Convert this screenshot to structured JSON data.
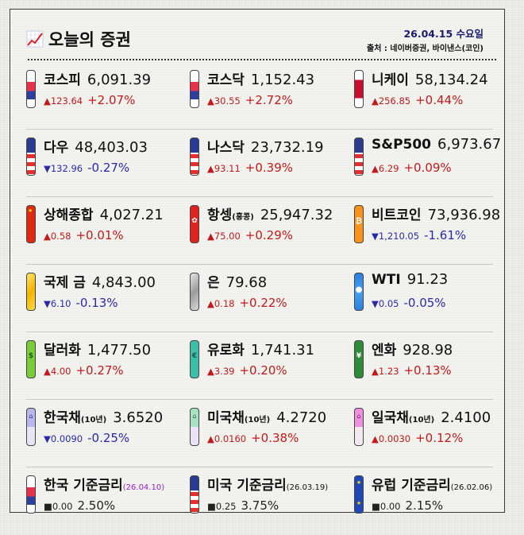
{
  "header": {
    "title": "오늘의 증권",
    "date": "26.04.15 수요일",
    "source": "출처 : 네이버증권, 바이낸스(코인)"
  },
  "colors": {
    "up": "#c21a1a",
    "down": "#2a2aa8",
    "flat": "#222222",
    "date_text": "#1b1b6b",
    "rate_date_highlight": "#9a22c9"
  },
  "rows": [
    [
      {
        "name": "코스피",
        "sub": "",
        "value": "6,091.39",
        "arrow": "▲",
        "change": "123.64",
        "pct": "+2.07%",
        "dir": "up",
        "icon": "korea-flag-icon"
      },
      {
        "name": "코스닥",
        "sub": "",
        "value": "1,152.43",
        "arrow": "▲",
        "change": "30.55",
        "pct": "+2.72%",
        "dir": "up",
        "icon": "korea-flag-icon"
      },
      {
        "name": "니케이",
        "sub": "",
        "value": "58,134.24",
        "arrow": "▲",
        "change": "256.85",
        "pct": "+0.44%",
        "dir": "up",
        "icon": "japan-flag-icon"
      }
    ],
    [
      {
        "name": "다우",
        "sub": "",
        "value": "48,403.03",
        "arrow": "▼",
        "change": "132.96",
        "pct": "-0.27%",
        "dir": "down",
        "icon": "usa-flag-icon"
      },
      {
        "name": "나스닥",
        "sub": "",
        "value": "23,732.19",
        "arrow": "▲",
        "change": "93.11",
        "pct": "+0.39%",
        "dir": "up",
        "icon": "usa-flag-icon"
      },
      {
        "name": "S&P500",
        "sub": "",
        "value": "6,973.67",
        "arrow": "▲",
        "change": "6.29",
        "pct": "+0.09%",
        "dir": "up",
        "icon": "usa-flag-icon"
      }
    ],
    [
      {
        "name": "상해종합",
        "sub": "",
        "value": "4,027.21",
        "arrow": "▲",
        "change": "0.58",
        "pct": "+0.01%",
        "dir": "up",
        "icon": "china-flag-icon"
      },
      {
        "name": "항셍",
        "sub": "(홍콩)",
        "value": "25,947.32",
        "arrow": "▲",
        "change": "75.00",
        "pct": "+0.29%",
        "dir": "up",
        "icon": "hongkong-flag-icon"
      },
      {
        "name": "비트코인",
        "sub": "",
        "value": "73,936.98",
        "arrow": "▼",
        "change": "1,210.05",
        "pct": "-1.61%",
        "dir": "down",
        "icon": "bitcoin-icon"
      }
    ],
    [
      {
        "name": "국제 금",
        "sub": "",
        "value": "4,843.00",
        "arrow": "▼",
        "change": "6.10",
        "pct": "-0.13%",
        "dir": "down",
        "icon": "gold-bar-icon"
      },
      {
        "name": "은",
        "sub": "",
        "value": "79.68",
        "arrow": "▲",
        "change": "0.18",
        "pct": "+0.22%",
        "dir": "up",
        "icon": "silver-bar-icon"
      },
      {
        "name": "WTI",
        "sub": "",
        "value": "91.23",
        "arrow": "▼",
        "change": "0.05",
        "pct": "-0.05%",
        "dir": "down",
        "icon": "oil-drop-icon"
      }
    ],
    [
      {
        "name": "달러화",
        "sub": "",
        "value": "1,477.50",
        "arrow": "▲",
        "change": "4.00",
        "pct": "+0.27%",
        "dir": "up",
        "icon": "dollar-bill-icon"
      },
      {
        "name": "유로화",
        "sub": "",
        "value": "1,741.31",
        "arrow": "▲",
        "change": "3.39",
        "pct": "+0.20%",
        "dir": "up",
        "icon": "euro-bill-icon"
      },
      {
        "name": "엔화",
        "sub": "",
        "value": "928.98",
        "arrow": "▲",
        "change": "1.23",
        "pct": "+0.13%",
        "dir": "up",
        "icon": "yen-bill-icon"
      }
    ],
    [
      {
        "name": "한국채",
        "sub": "(10년)",
        "value": "3.6520",
        "arrow": "▼",
        "change": "0.0090",
        "pct": "-0.25%",
        "dir": "down",
        "icon": "korea-bond-icon"
      },
      {
        "name": "미국채",
        "sub": "(10년)",
        "value": "4.2720",
        "arrow": "▲",
        "change": "0.0160",
        "pct": "+0.38%",
        "dir": "up",
        "icon": "us-bond-icon"
      },
      {
        "name": "일국채",
        "sub": "(10년)",
        "value": "2.4100",
        "arrow": "▲",
        "change": "0.0030",
        "pct": "+0.12%",
        "dir": "up",
        "icon": "japan-bond-icon"
      }
    ],
    [
      {
        "name": "한국 기준금리",
        "sub": "(26.04.10)",
        "value": "",
        "arrow": "■",
        "change": "0.00",
        "pct": "2.50%",
        "dir": "flat",
        "icon": "korea-flag-icon",
        "sub_highlight": true
      },
      {
        "name": "미국 기준금리",
        "sub": "(26.03.19)",
        "value": "",
        "arrow": "■",
        "change": "0.25",
        "pct": "3.75%",
        "dir": "flat",
        "icon": "usa-flag-icon"
      },
      {
        "name": "유럽 기준금리",
        "sub": "(26.02.06)",
        "value": "",
        "arrow": "■",
        "change": "0.00",
        "pct": "2.15%",
        "dir": "flat",
        "icon": "eu-flag-icon"
      }
    ]
  ]
}
